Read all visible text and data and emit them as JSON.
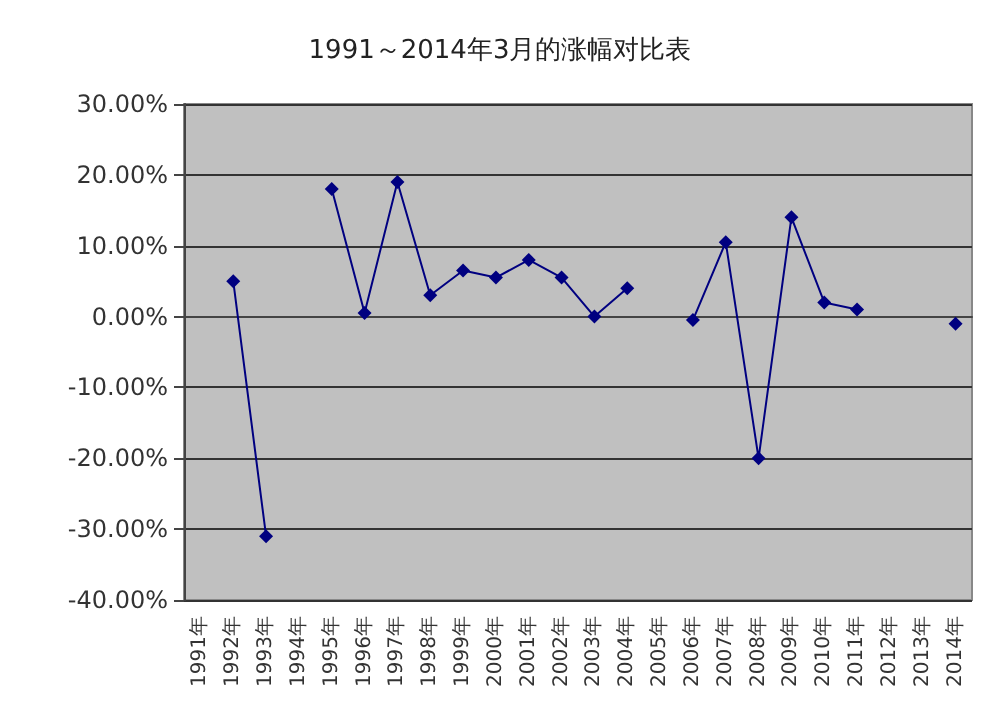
{
  "chart_data": {
    "type": "line",
    "title": "1991～2014年3月的涨幅对比表",
    "categories": [
      "1991年",
      "1992年",
      "1993年",
      "1994年",
      "1995年",
      "1996年",
      "1997年",
      "1998年",
      "1999年",
      "2000年",
      "2001年",
      "2002年",
      "2003年",
      "2004年",
      "2005年",
      "2006年",
      "2007年",
      "2008年",
      "2009年",
      "2010年",
      "2011年",
      "2012年",
      "2013年",
      "2014年"
    ],
    "series": [
      {
        "color": "#000080",
        "values": [
          null,
          5,
          -31,
          null,
          18,
          0.5,
          19,
          3,
          6.5,
          5.5,
          8,
          5.5,
          0,
          4,
          null,
          -0.5,
          10.5,
          -20,
          14,
          2,
          1,
          null,
          null,
          -1
        ]
      }
    ],
    "ylim": [
      -40,
      30
    ],
    "yticks": [
      {
        "value": -40,
        "label": "-40.00%"
      },
      {
        "value": -30,
        "label": "-30.00%"
      },
      {
        "value": -20,
        "label": "-20.00%"
      },
      {
        "value": -10,
        "label": "-10.00%"
      },
      {
        "value": 0,
        "label": "0.00%"
      },
      {
        "value": 10,
        "label": "10.00%"
      },
      {
        "value": 20,
        "label": "20.00%"
      },
      {
        "value": 30,
        "label": "30.00%"
      }
    ],
    "grid": "y",
    "marker": "diamond",
    "line_style": "solid"
  }
}
